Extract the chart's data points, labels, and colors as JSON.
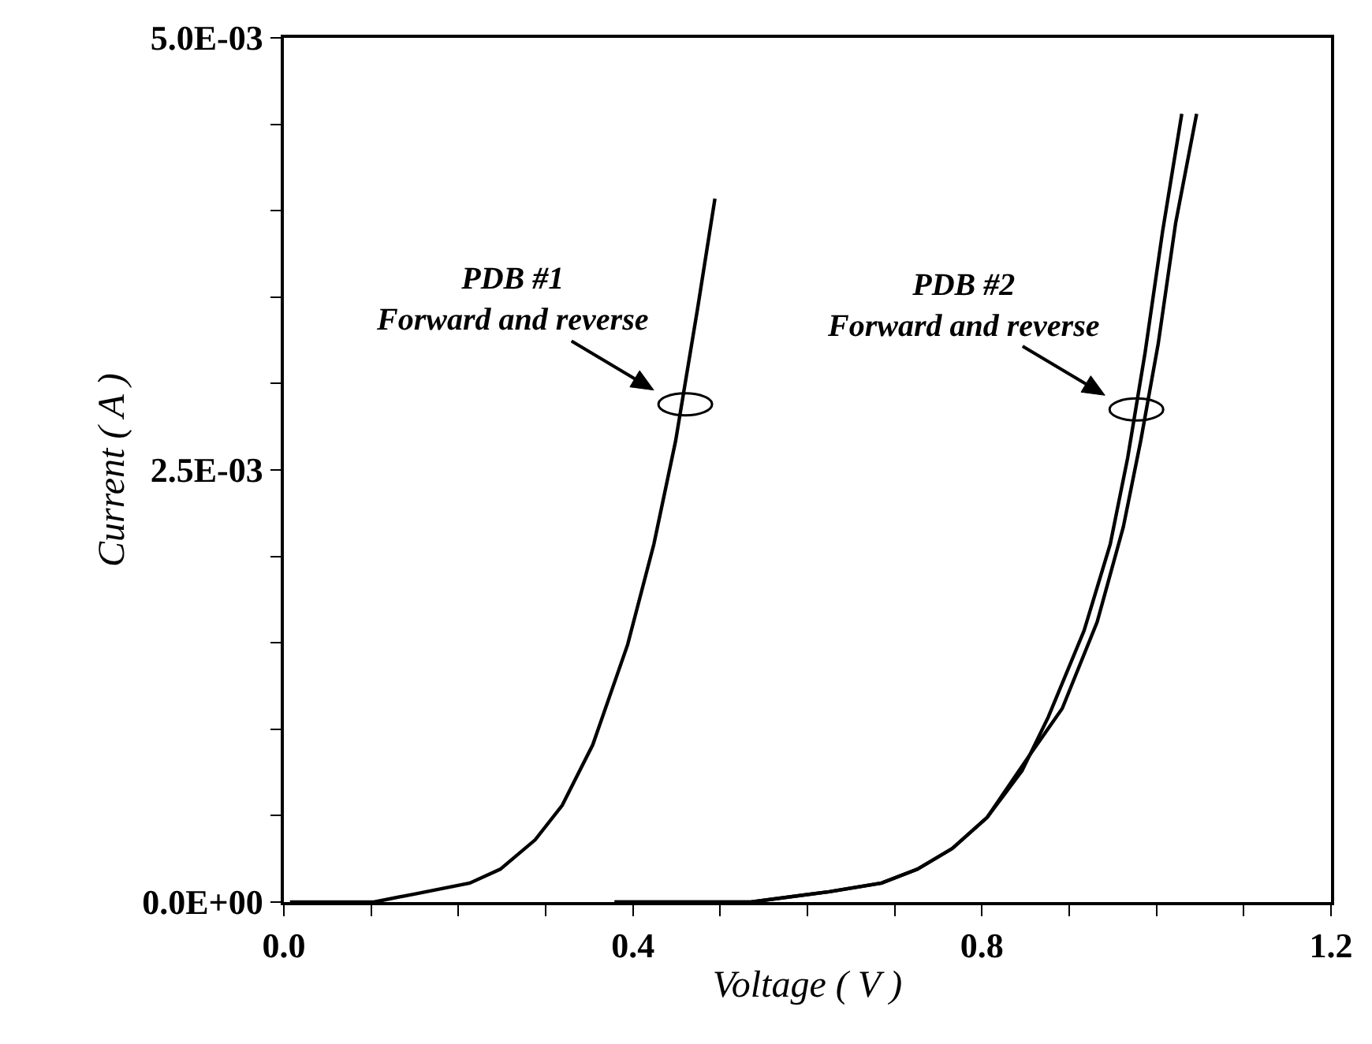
{
  "chart_data": {
    "type": "line",
    "xlabel": "Voltage ( V )",
    "ylabel": "Current ( A )",
    "xlim": [
      0,
      1.2
    ],
    "ylim": [
      0,
      0.005
    ],
    "xticks": [
      {
        "value": 0,
        "label": "0.0"
      },
      {
        "value": 0.1,
        "label": null
      },
      {
        "value": 0.2,
        "label": null
      },
      {
        "value": 0.3,
        "label": null
      },
      {
        "value": 0.4,
        "label": "0.4"
      },
      {
        "value": 0.5,
        "label": null
      },
      {
        "value": 0.6,
        "label": null
      },
      {
        "value": 0.7,
        "label": null
      },
      {
        "value": 0.8,
        "label": "0.8"
      },
      {
        "value": 0.9,
        "label": null
      },
      {
        "value": 1.0,
        "label": null
      },
      {
        "value": 1.1,
        "label": null
      },
      {
        "value": 1.2,
        "label": "1.2"
      }
    ],
    "yticks": [
      {
        "value": 0,
        "label": "0.0E+00"
      },
      {
        "value": 0.0005,
        "label": null
      },
      {
        "value": 0.001,
        "label": null
      },
      {
        "value": 0.0015,
        "label": null
      },
      {
        "value": 0.002,
        "label": null
      },
      {
        "value": 0.0025,
        "label": "2.5E-03"
      },
      {
        "value": 0.003,
        "label": null
      },
      {
        "value": 0.0035,
        "label": null
      },
      {
        "value": 0.004,
        "label": null
      },
      {
        "value": 0.0045,
        "label": null
      },
      {
        "value": 0.005,
        "label": "5.0E-03"
      }
    ],
    "marker": "none",
    "line_style": "solid",
    "series": [
      {
        "color": "#000000",
        "x": [
          0.007,
          0.103,
          0.153,
          0.213,
          0.248,
          0.288,
          0.319,
          0.354,
          0.394,
          0.424,
          0.449,
          0.474,
          0.494
        ],
        "values": [
          0,
          0,
          5e-05,
          0.00011,
          0.00019,
          0.00036,
          0.00056,
          0.00091,
          0.00149,
          0.00207,
          0.00267,
          0.00343,
          0.00407
        ]
      },
      {
        "color": "#000000",
        "x": [
          0.379,
          0.535,
          0.625,
          0.685,
          0.726,
          0.766,
          0.806,
          0.846,
          0.876,
          0.917,
          0.947,
          0.967,
          0.987,
          1.007,
          1.029
        ],
        "values": [
          0,
          0,
          6e-05,
          0.00011,
          0.00019,
          0.00031,
          0.00049,
          0.00076,
          0.00107,
          0.00157,
          0.00207,
          0.00257,
          0.00318,
          0.00388,
          0.00456
        ]
      },
      {
        "color": "#000000",
        "x": [
          0.379,
          0.535,
          0.625,
          0.685,
          0.726,
          0.766,
          0.806,
          0.856,
          0.892,
          0.932,
          0.962,
          0.982,
          1.002,
          1.022,
          1.046
        ],
        "values": [
          0,
          0,
          6e-05,
          0.00011,
          0.00019,
          0.00031,
          0.00049,
          0.00086,
          0.00112,
          0.00162,
          0.00217,
          0.00267,
          0.00323,
          0.00393,
          0.00456
        ]
      }
    ],
    "annotations": [
      {
        "text": "PDB #1\nForward and reverse",
        "x": 0.46,
        "y": 0.00288
      },
      {
        "text": "PDB #2\nForward and reverse",
        "x": 0.977,
        "y": 0.00285
      }
    ]
  }
}
